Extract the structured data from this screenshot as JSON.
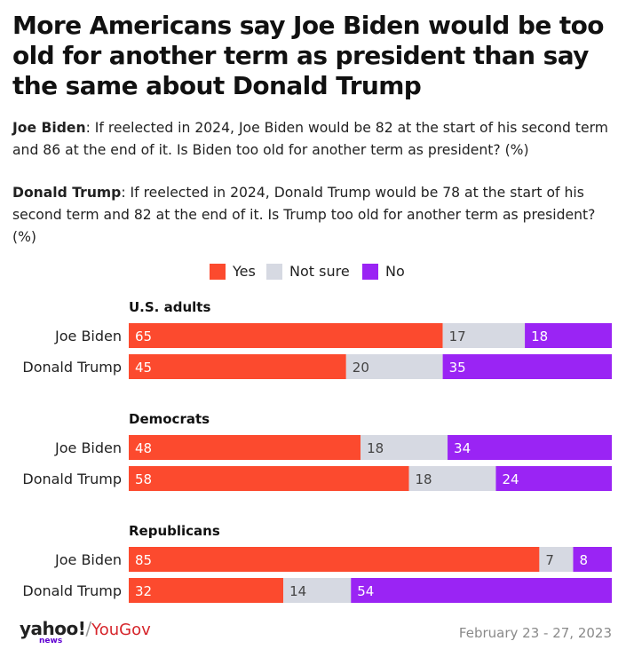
{
  "title": "More Americans say Joe Biden would be too old for another term as president than say the same about Donald Trump",
  "questions": [
    {
      "name": "Joe Biden",
      "text": ": If reelected in 2024, Joe Biden would be 82 at the start of his second term and 86 at the end of it. Is Biden too old for another term as president? (%)"
    },
    {
      "name": "Donald Trump",
      "text": ": If reelected in 2024, Donald Trump would be 78 at the start of his second term and 82 at the end of it. Is Trump too old for another term as president? (%)"
    }
  ],
  "legend": [
    {
      "label": "Yes",
      "color": "#fc4a2e"
    },
    {
      "label": "Not sure",
      "color": "#d6d9e2"
    },
    {
      "label": "No",
      "color": "#9a24f4"
    }
  ],
  "footer": {
    "logo_yahoo": "yahoo!",
    "logo_news": "news",
    "logo_slash": "/",
    "logo_yougov": "YouGov",
    "date": "February 23 - 27, 2023"
  },
  "chart_data": {
    "type": "bar",
    "orientation": "horizontal",
    "stacked": true,
    "xlim": [
      0,
      100
    ],
    "series": [
      {
        "name": "Yes",
        "color": "#fc4a2e"
      },
      {
        "name": "Not sure",
        "color": "#d6d9e2"
      },
      {
        "name": "No",
        "color": "#9a24f4"
      }
    ],
    "groups": [
      {
        "label": "U.S. adults",
        "rows": [
          {
            "label": "Joe Biden",
            "values": [
              65,
              17,
              18
            ]
          },
          {
            "label": "Donald Trump",
            "values": [
              45,
              20,
              35
            ]
          }
        ]
      },
      {
        "label": "Democrats",
        "rows": [
          {
            "label": "Joe Biden",
            "values": [
              48,
              18,
              34
            ]
          },
          {
            "label": "Donald Trump",
            "values": [
              58,
              18,
              24
            ]
          }
        ]
      },
      {
        "label": "Republicans",
        "rows": [
          {
            "label": "Joe Biden",
            "values": [
              85,
              7,
              8
            ]
          },
          {
            "label": "Donald Trump",
            "values": [
              32,
              14,
              54
            ]
          }
        ]
      }
    ]
  }
}
